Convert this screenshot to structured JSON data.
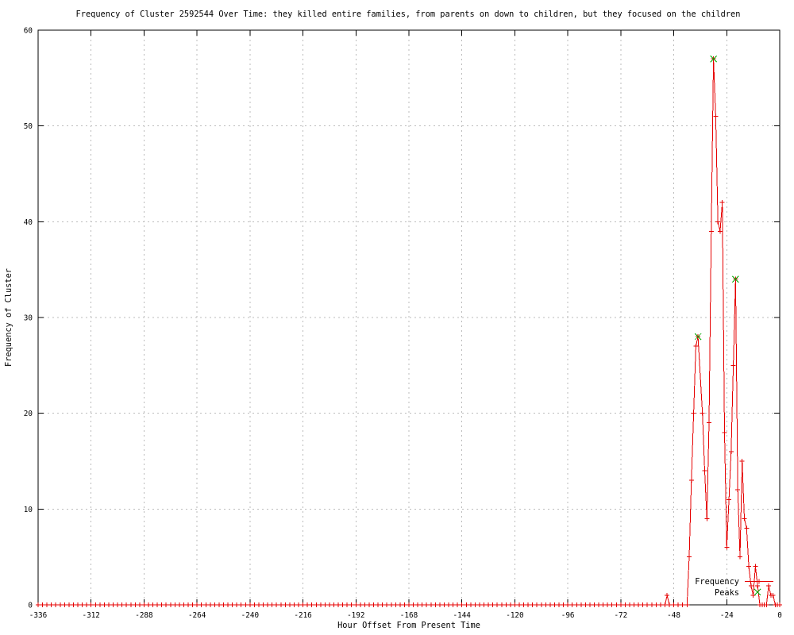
{
  "title": "Frequency of Cluster 2592544 Over Time: they killed entire families, from parents on down to children, but they focused on the children",
  "axes": {
    "xlabel": "Hour Offset From Present Time",
    "ylabel": "Frequency of Cluster"
  },
  "legend": {
    "entries": [
      {
        "label": "Frequency",
        "color": "#e60000",
        "marker": "plus",
        "sample": "line-with-point"
      },
      {
        "label": "Peaks",
        "color": "#00a800",
        "marker": "cross",
        "sample": "point-only"
      }
    ],
    "position": "inside-bottom-right"
  },
  "colors": {
    "frequency_line": "#e60000",
    "peaks_marker": "#00a800",
    "grid": "#bbbbbb",
    "border": "#000000",
    "background": "#ffffff"
  },
  "chart_data": {
    "type": "line",
    "title": "Frequency of Cluster 2592544 Over Time: they killed entire families, from parents on down to children, but they focused on the children",
    "xlabel": "Hour Offset From Present Time",
    "ylabel": "Frequency of Cluster",
    "xlim": [
      -336,
      0
    ],
    "ylim": [
      0,
      60
    ],
    "xticks": [
      -336,
      -312,
      -288,
      -264,
      -240,
      -216,
      -192,
      -168,
      -144,
      -120,
      -96,
      -72,
      -48,
      -24,
      0
    ],
    "yticks": [
      0,
      10,
      20,
      30,
      40,
      50,
      60
    ],
    "grid": true,
    "legend_position": "inside-bottom-right",
    "series": [
      {
        "name": "Frequency",
        "style": "linespoints",
        "marker": "plus",
        "color": "#e60000",
        "baseline_zeros": {
          "from": -336,
          "to": -54,
          "step": 2,
          "value": 0
        },
        "points": [
          [
            -52,
            0
          ],
          [
            -51,
            1
          ],
          [
            -50,
            0
          ],
          [
            -48,
            0
          ],
          [
            -46,
            0
          ],
          [
            -44,
            0
          ],
          [
            -42,
            0
          ],
          [
            -41,
            5
          ],
          [
            -40,
            13
          ],
          [
            -39,
            20
          ],
          [
            -38,
            27
          ],
          [
            -37,
            28
          ],
          [
            -35,
            20
          ],
          [
            -34,
            14
          ],
          [
            -33,
            9
          ],
          [
            -32,
            19
          ],
          [
            -31,
            39
          ],
          [
            -30,
            57
          ],
          [
            -29,
            51
          ],
          [
            -28,
            40
          ],
          [
            -27,
            39
          ],
          [
            -26,
            42
          ],
          [
            -25,
            18
          ],
          [
            -24,
            6
          ],
          [
            -23,
            11
          ],
          [
            -22,
            16
          ],
          [
            -21,
            25
          ],
          [
            -20,
            34
          ],
          [
            -19,
            12
          ],
          [
            -18,
            5
          ],
          [
            -17,
            15
          ],
          [
            -16,
            9
          ],
          [
            -15,
            8
          ],
          [
            -14,
            4
          ],
          [
            -13,
            2
          ],
          [
            -12,
            1
          ],
          [
            -11,
            4
          ],
          [
            -10,
            2
          ],
          [
            -9,
            0
          ],
          [
            -8,
            0
          ],
          [
            -7,
            0
          ],
          [
            -6,
            0
          ],
          [
            -5,
            2
          ],
          [
            -4,
            1
          ],
          [
            -3,
            1
          ],
          [
            -2,
            0
          ],
          [
            -1,
            0
          ],
          [
            0,
            0
          ]
        ]
      },
      {
        "name": "Peaks",
        "style": "points",
        "marker": "cross",
        "color": "#00a800",
        "points": [
          [
            -37,
            28
          ],
          [
            -30,
            57
          ],
          [
            -20,
            34
          ]
        ]
      }
    ]
  }
}
